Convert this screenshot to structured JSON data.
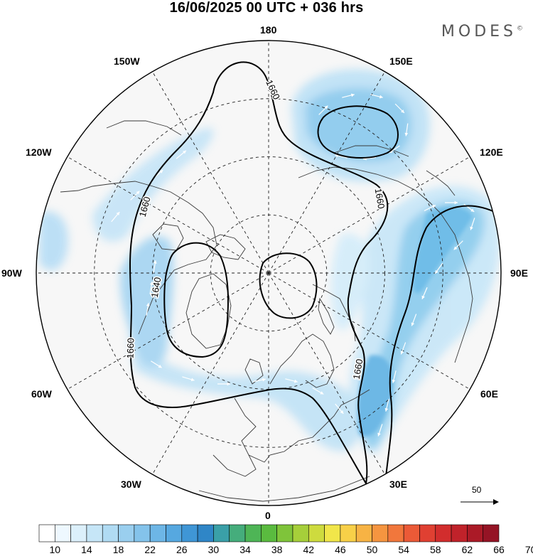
{
  "header": {
    "title": "16/06/2025  00 UTC  + 036 hrs",
    "brand": "MODES",
    "brand_mark": "©"
  },
  "map": {
    "projection": "north-polar-stereographic",
    "longitude_labels": [
      "180",
      "150E",
      "120E",
      "90E",
      "60E",
      "30E",
      "0",
      "30W",
      "60W",
      "90W",
      "120W",
      "150W"
    ],
    "contour_labels": [
      "1660",
      "1660",
      "1660",
      "1640",
      "1660",
      "1660"
    ],
    "contour_label_slots": [
      0,
      1,
      2,
      3,
      4,
      5
    ],
    "grid": true,
    "reference_vector": "50",
    "colors": {
      "land": "#f2f2f2",
      "coast": "#333333",
      "grid": "#222222",
      "contour": "#000000",
      "arrows": "#ffffff"
    }
  },
  "colorbar": {
    "tick_labels": [
      "10",
      "14",
      "18",
      "22",
      "26",
      "30",
      "34",
      "38",
      "42",
      "46",
      "50",
      "54",
      "58",
      "62",
      "66",
      "70"
    ],
    "colors": [
      "#ffffff",
      "#eef8ff",
      "#dcf0fb",
      "#c6e6f7",
      "#b0dbf3",
      "#9acfef",
      "#84c3eb",
      "#6db6e6",
      "#56a8e0",
      "#3f96d6",
      "#2f86c7",
      "#3aa0a8",
      "#45ad7c",
      "#4eb556",
      "#5abb3f",
      "#7fc43a",
      "#a6cf3a",
      "#cedb3e",
      "#f1e64a",
      "#f8d048",
      "#f7b344",
      "#f59540",
      "#f1773c",
      "#eb5a37",
      "#e04032",
      "#d22d2d",
      "#c0222a",
      "#ab1a27",
      "#951425"
    ]
  }
}
